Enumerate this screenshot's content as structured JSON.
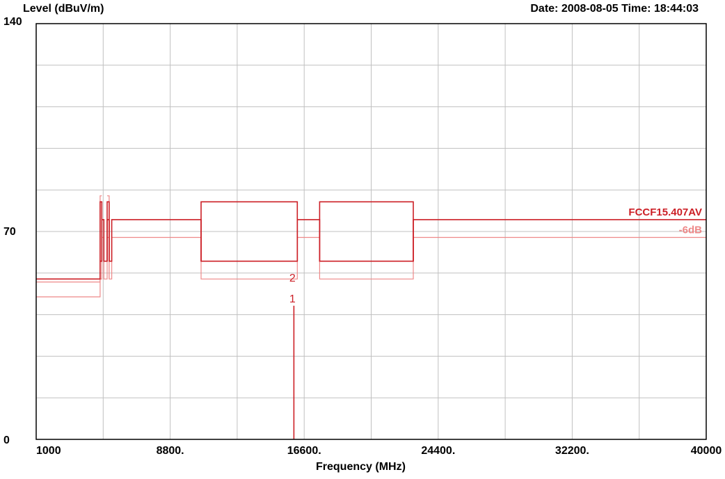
{
  "header": {
    "y_axis_label": "Level (dBuV/m)",
    "datetime": "Date: 2008-08-05  Time: 18:44:03"
  },
  "chart_data": {
    "type": "line",
    "xlabel": "Frequency (MHz)",
    "ylabel": "Level (dBuV/m)",
    "xlim": [
      1000,
      40000
    ],
    "ylim": [
      0,
      140
    ],
    "x_tick_labels": [
      {
        "value": 1000,
        "label": "1000"
      },
      {
        "value": 8800,
        "label": "8800."
      },
      {
        "value": 16600,
        "label": "16600."
      },
      {
        "value": 24400,
        "label": "24400."
      },
      {
        "value": 32200,
        "label": "32200."
      },
      {
        "value": 40000,
        "label": "40000"
      }
    ],
    "x_grid": [
      1000,
      4900,
      8800,
      12700,
      16600,
      20500,
      24400,
      28300,
      32200,
      36100,
      40000
    ],
    "y_tick_labels": [
      {
        "value": 140,
        "label": "140"
      },
      {
        "value": 70,
        "label": "70"
      },
      {
        "value": 0,
        "label": "0"
      }
    ],
    "y_grid": [
      0,
      14,
      28,
      42,
      56,
      70,
      84,
      98,
      112,
      126,
      140
    ],
    "grid": true,
    "colors": {
      "limit": "#cc1f26",
      "margin": "#ee8888",
      "grid": "#c0c0c0",
      "marker": "#cc1f26",
      "margin_label": "#ee8888"
    },
    "series": [
      {
        "role": "limit",
        "points": [
          [
            1000,
            54
          ],
          [
            4700,
            54
          ],
          [
            4700,
            60
          ],
          [
            4850,
            60
          ],
          [
            4850,
            74
          ],
          [
            4980,
            74
          ],
          [
            4980,
            60
          ],
          [
            5150,
            60
          ],
          [
            5150,
            74
          ],
          [
            5300,
            74
          ],
          [
            5300,
            60
          ],
          [
            5460,
            60
          ],
          [
            5460,
            74
          ],
          [
            10500,
            74
          ],
          [
            10500,
            74
          ],
          [
            10500,
            74
          ],
          [
            10500,
            74
          ]
        ]
      }
    ],
    "limit_lines": [
      {
        "role": "limit",
        "points": [
          [
            1000,
            54
          ],
          [
            4720,
            54
          ],
          [
            4720,
            60
          ],
          [
            4820,
            60
          ],
          [
            4820,
            74
          ],
          [
            4940,
            74
          ],
          [
            4940,
            60
          ],
          [
            5130,
            60
          ],
          [
            5130,
            74
          ],
          [
            5250,
            74
          ],
          [
            5250,
            60
          ],
          [
            5400,
            60
          ],
          [
            5400,
            74
          ],
          [
            10600,
            74
          ],
          [
            10600,
            60
          ],
          [
            16200,
            60
          ],
          [
            16200,
            74
          ],
          [
            17500,
            74
          ],
          [
            17500,
            60
          ],
          [
            22950,
            60
          ],
          [
            22950,
            74
          ],
          [
            40000,
            74
          ]
        ]
      },
      {
        "role": "limit",
        "points": [
          [
            10600,
            60
          ],
          [
            10600,
            80
          ],
          [
            16200,
            80
          ],
          [
            16200,
            60
          ]
        ]
      },
      {
        "role": "limit",
        "points": [
          [
            17500,
            60
          ],
          [
            17500,
            80
          ],
          [
            22950,
            80
          ],
          [
            22950,
            60
          ]
        ]
      },
      {
        "role": "limit",
        "points": [
          [
            4720,
            60
          ],
          [
            4720,
            80
          ],
          [
            4820,
            80
          ],
          [
            4820,
            60
          ]
        ]
      },
      {
        "role": "limit",
        "points": [
          [
            5130,
            60
          ],
          [
            5130,
            80
          ],
          [
            5250,
            80
          ],
          [
            5250,
            60
          ]
        ]
      },
      {
        "role": "margin",
        "points": [
          [
            1000,
            48
          ],
          [
            4720,
            48
          ],
          [
            4720,
            54
          ],
          [
            4820,
            54
          ],
          [
            4820,
            68
          ],
          [
            4940,
            68
          ],
          [
            4940,
            54
          ],
          [
            5130,
            54
          ],
          [
            5130,
            68
          ],
          [
            5250,
            68
          ],
          [
            5250,
            54
          ],
          [
            5400,
            54
          ],
          [
            5400,
            68
          ],
          [
            10600,
            68
          ],
          [
            10600,
            54
          ],
          [
            16200,
            54
          ],
          [
            16200,
            68
          ],
          [
            17500,
            68
          ],
          [
            17500,
            54
          ],
          [
            22950,
            54
          ],
          [
            22950,
            68
          ],
          [
            40000,
            68
          ]
        ]
      },
      {
        "role": "margin",
        "points": [
          [
            1000,
            53
          ],
          [
            4720,
            53
          ],
          [
            4720,
            82
          ],
          [
            4820,
            82
          ]
        ]
      },
      {
        "role": "margin",
        "points": [
          [
            5130,
            82
          ],
          [
            5250,
            82
          ],
          [
            5250,
            54
          ]
        ]
      }
    ],
    "markers": [
      {
        "label": "1",
        "x": 16000,
        "y": 45,
        "bottom": 0
      },
      {
        "label": "2",
        "x": 16000,
        "y": 52
      }
    ],
    "line_labels": [
      {
        "text": "FCCF15.407AV",
        "role": "limit",
        "y": 74
      },
      {
        "text": "-6dB",
        "role": "margin",
        "y": 68
      }
    ]
  }
}
